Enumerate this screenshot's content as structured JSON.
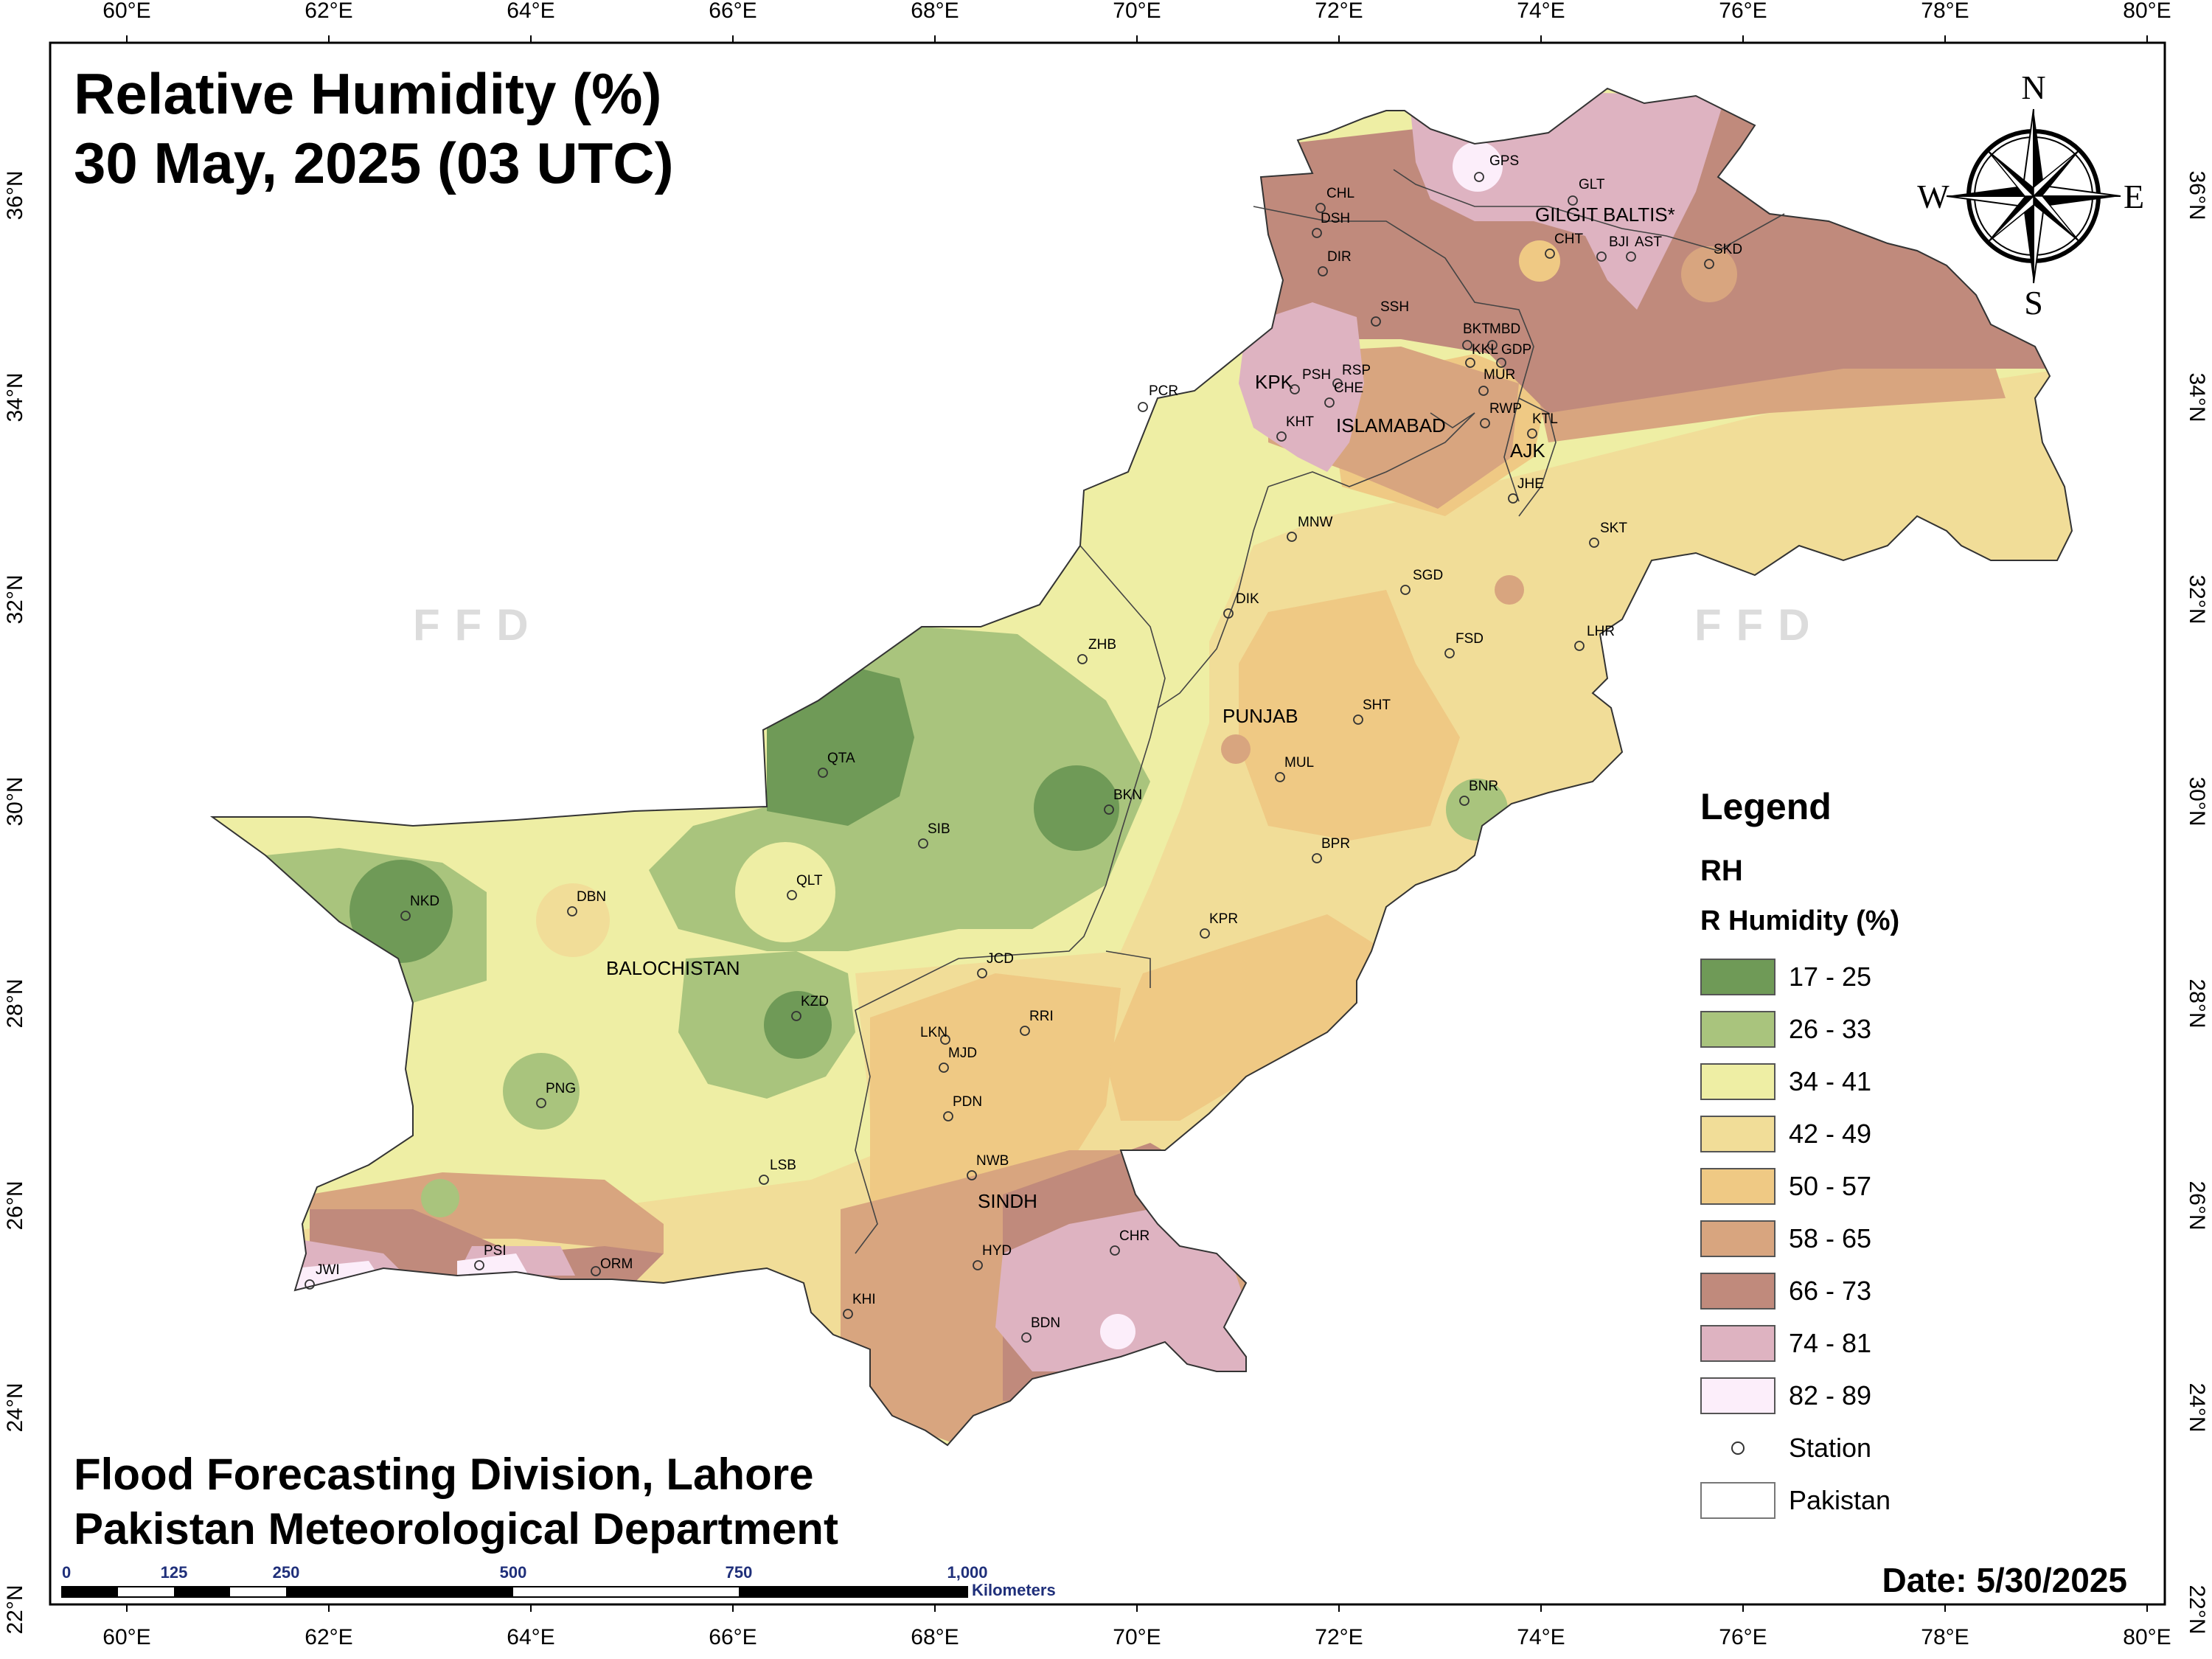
{
  "title": {
    "line1": "Relative Humidity (%)",
    "line2": "30 May, 2025 (03 UTC)"
  },
  "footer": {
    "line1": "Flood Forecasting Division, Lahore",
    "line2": "Pakistan Meteorological Department",
    "date": "Date: 5/30/2025"
  },
  "watermark": "FFD",
  "axes": {
    "lon_ticks": [
      "60°E",
      "62°E",
      "64°E",
      "66°E",
      "68°E",
      "70°E",
      "72°E",
      "74°E",
      "76°E",
      "78°E",
      "80°E"
    ],
    "lat_ticks": [
      "36°N",
      "34°N",
      "32°N",
      "30°N",
      "28°N",
      "26°N",
      "24°N",
      "22°N"
    ]
  },
  "compass": {
    "north": "N",
    "south": "S",
    "east": "E",
    "west": "W"
  },
  "scale_bar": {
    "labels": [
      "0",
      "125",
      "250",
      "500",
      "750",
      "1,000"
    ],
    "unit": "Kilometers"
  },
  "legend": {
    "title": "Legend",
    "field": "RH",
    "subtitle": "R Humidity (%)",
    "classes": [
      {
        "label": "17 - 25",
        "color": "#6f9a57"
      },
      {
        "label": "26 - 33",
        "color": "#a9c47d"
      },
      {
        "label": "34 - 41",
        "color": "#eeeea4"
      },
      {
        "label": "42 - 49",
        "color": "#f1dd98"
      },
      {
        "label": "50 - 57",
        "color": "#efc984"
      },
      {
        "label": "58 - 65",
        "color": "#d8a57f"
      },
      {
        "label": "66 - 73",
        "color": "#c08a7c"
      },
      {
        "label": "74 - 81",
        "color": "#deb3c1"
      },
      {
        "label": "82 - 89",
        "color": "#fceefa"
      }
    ],
    "station_label": "Station",
    "boundary_label": "Pakistan"
  },
  "regions": [
    "GILGIT BALTIS*",
    "KPK",
    "ISLAMABAD",
    "AJK",
    "PUNJAB",
    "BALOCHISTAN",
    "SINDH"
  ],
  "stations": [
    "GPS",
    "GLT",
    "CHL",
    "DSH",
    "CHT",
    "BJI",
    "AST",
    "SKD",
    "DIR",
    "SSH",
    "BKT",
    "MBD",
    "KKL",
    "GDP",
    "PSH",
    "RSP",
    "MUR",
    "CHE",
    "KHT",
    "RWP",
    "KTL",
    "PCR",
    "JHE",
    "MNW",
    "SKT",
    "SGD",
    "DIK",
    "LHR",
    "ZHB",
    "FSD",
    "SHT",
    "QTA",
    "BKN",
    "MUL",
    "BNR",
    "SIB",
    "BPR",
    "QLT",
    "NKD",
    "DBN",
    "KPR",
    "JCD",
    "KZD",
    "RRI",
    "LKN",
    "MJD",
    "PNG",
    "PDN",
    "NWB",
    "LSB",
    "CHR",
    "PSI",
    "ORM",
    "JWI",
    "HYD",
    "KHI",
    "BDN"
  ]
}
